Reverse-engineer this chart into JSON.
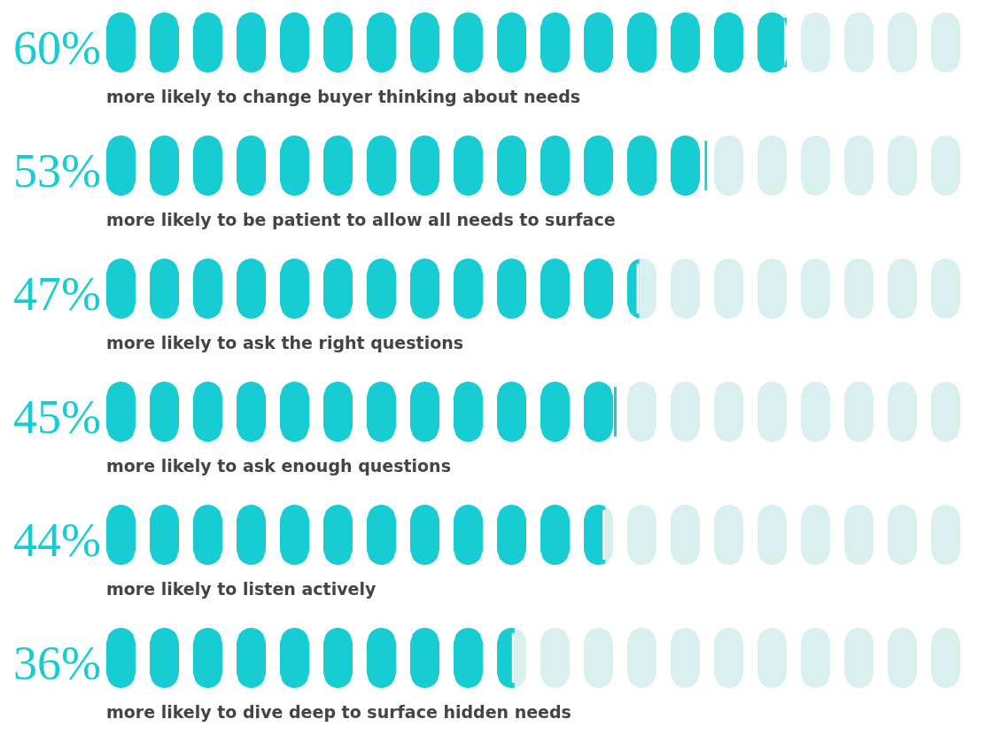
{
  "chart_data": {
    "type": "bar",
    "orientation": "horizontal",
    "categories": [
      "more likely to change buyer thinking about needs",
      "more likely to be patient to allow all needs to surface",
      "more likely to ask the right questions",
      "more likely to ask enough questions",
      "more likely to listen actively",
      "more likely to dive deep to surface hidden needs"
    ],
    "values": [
      60,
      53,
      47,
      45,
      44,
      36
    ],
    "value_labels": [
      "60%",
      "53%",
      "47%",
      "45%",
      "44%",
      "36%"
    ],
    "color": "#17cdd3"
  }
}
